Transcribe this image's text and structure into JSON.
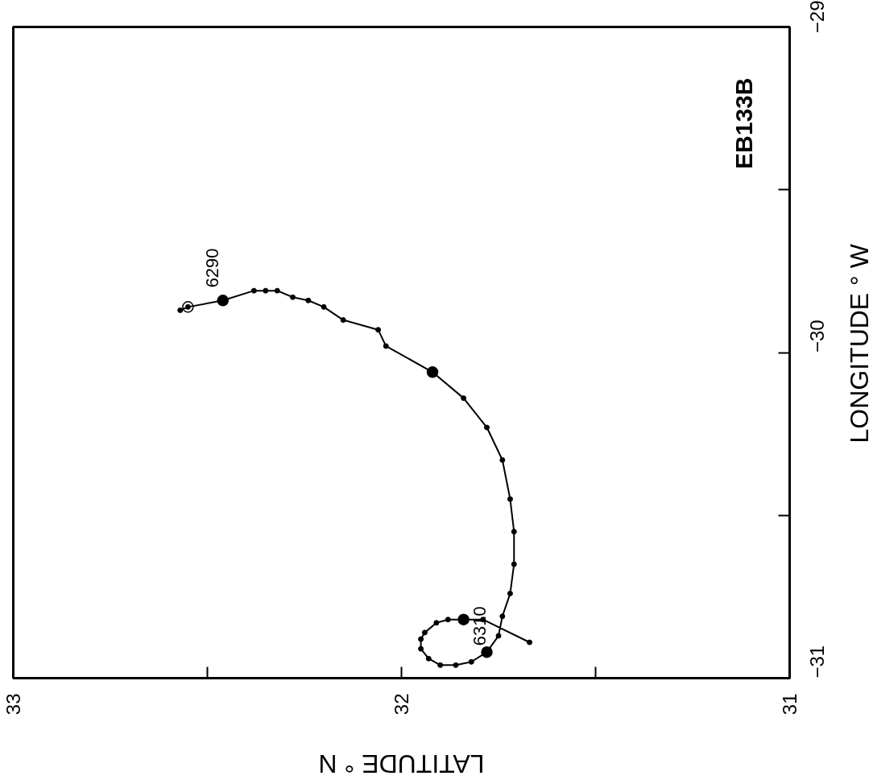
{
  "chart_data": {
    "type": "line",
    "xlabel": "LATITUDE ° N",
    "ylabel": "LONGITUDE ° W",
    "annotations": [
      {
        "text": "6290",
        "x": 32.55,
        "y": -29.86
      },
      {
        "text": "6310",
        "x": 31.86,
        "y": -30.96
      },
      "EB133B"
    ],
    "xlim": [
      33,
      31
    ],
    "ylim": [
      -31,
      -29
    ],
    "xticks": [
      33,
      {
        "value": 32.5,
        "label": null
      },
      32,
      {
        "value": 31.5,
        "label": null
      },
      31
    ],
    "yticks": [
      {
        "value": -31,
        "label": "−31"
      },
      {
        "value": -30.5,
        "label": null
      },
      {
        "value": -30,
        "label": "−30"
      },
      {
        "value": -29.5,
        "label": null
      },
      {
        "value": -29,
        "label": "−29"
      }
    ],
    "series": [
      {
        "color": "#000000",
        "marker": "circle",
        "line_style": "solid",
        "x": [
          32.57,
          32.55,
          32.46,
          32.38,
          32.35,
          32.32,
          32.28,
          32.24,
          32.2,
          32.15,
          32.06,
          32.04,
          31.92,
          31.84,
          31.78,
          31.74,
          31.72,
          31.71,
          31.71,
          31.72,
          31.74,
          31.75,
          31.78,
          31.82,
          31.86,
          31.9,
          31.93,
          31.95,
          31.95,
          31.94,
          31.91,
          31.88,
          31.84,
          31.79,
          31.67
        ],
        "values": [
          -29.87,
          -29.86,
          -29.84,
          -29.81,
          -29.81,
          -29.81,
          -29.83,
          -29.84,
          -29.86,
          -29.9,
          -29.93,
          -29.98,
          -30.06,
          -30.14,
          -30.23,
          -30.33,
          -30.45,
          -30.55,
          -30.65,
          -30.74,
          -30.81,
          -30.87,
          -30.92,
          -30.95,
          -30.96,
          -30.96,
          -30.94,
          -30.91,
          -30.88,
          -30.86,
          -30.83,
          -30.82,
          -30.82,
          -30.82,
          -30.89
        ]
      },
      {
        "type": "scatter",
        "color": "#000000",
        "marker": "circle",
        "x": [
          32.46,
          31.92,
          31.78,
          31.84
        ],
        "values": [
          -29.84,
          -30.06,
          -30.92,
          -30.82
        ]
      },
      {
        "type": "scatter",
        "color": "#ffffff",
        "marker": "circle",
        "x": [
          32.55
        ],
        "values": [
          -29.86
        ]
      }
    ]
  }
}
